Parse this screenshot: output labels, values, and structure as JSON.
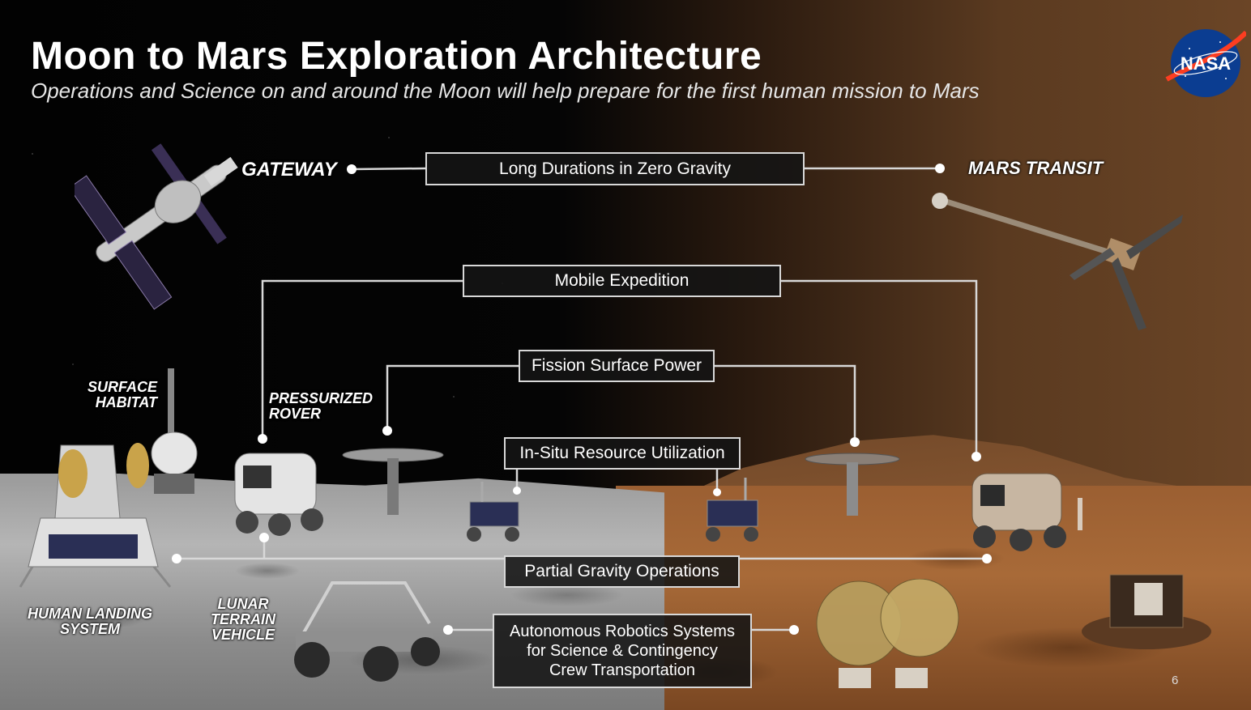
{
  "slide": {
    "title": "Moon to Mars Exploration Architecture",
    "subtitle": "Operations and Science on and around the Moon will help prepare for the first human mission to Mars",
    "page_number": "6"
  },
  "logo": {
    "text": "NASA",
    "icon": "nasa-meatball-logo"
  },
  "labels": {
    "gateway": "GATEWAY",
    "mars_transit": "MARS TRANSIT",
    "surface_habitat": [
      "SURFACE",
      "HABITAT"
    ],
    "pressurized_rover": [
      "PRESSURIZED",
      "ROVER"
    ],
    "human_landing_system": [
      "HUMAN LANDING",
      "SYSTEM"
    ],
    "lunar_terrain_vehicle": [
      "LUNAR",
      "TERRAIN",
      "VEHICLE"
    ]
  },
  "capabilities": {
    "zero_gravity": "Long Durations in Zero Gravity",
    "mobile_expedition": "Mobile Expedition",
    "fission_power": "Fission Surface Power",
    "isru": "In-Situ Resource Utilization",
    "partial_gravity": "Partial Gravity Operations",
    "autonomous_robotics": [
      "Autonomous Robotics Systems",
      "for Science & Contingency",
      "Crew Transportation"
    ]
  },
  "colors": {
    "connector": "#d8d8d8",
    "box_fill": "#141414",
    "moon_surface": "#a8a8a8",
    "mars_surface": "#9b5f32",
    "nasa_blue": "#0b3d91",
    "nasa_red": "#fc3d21"
  }
}
